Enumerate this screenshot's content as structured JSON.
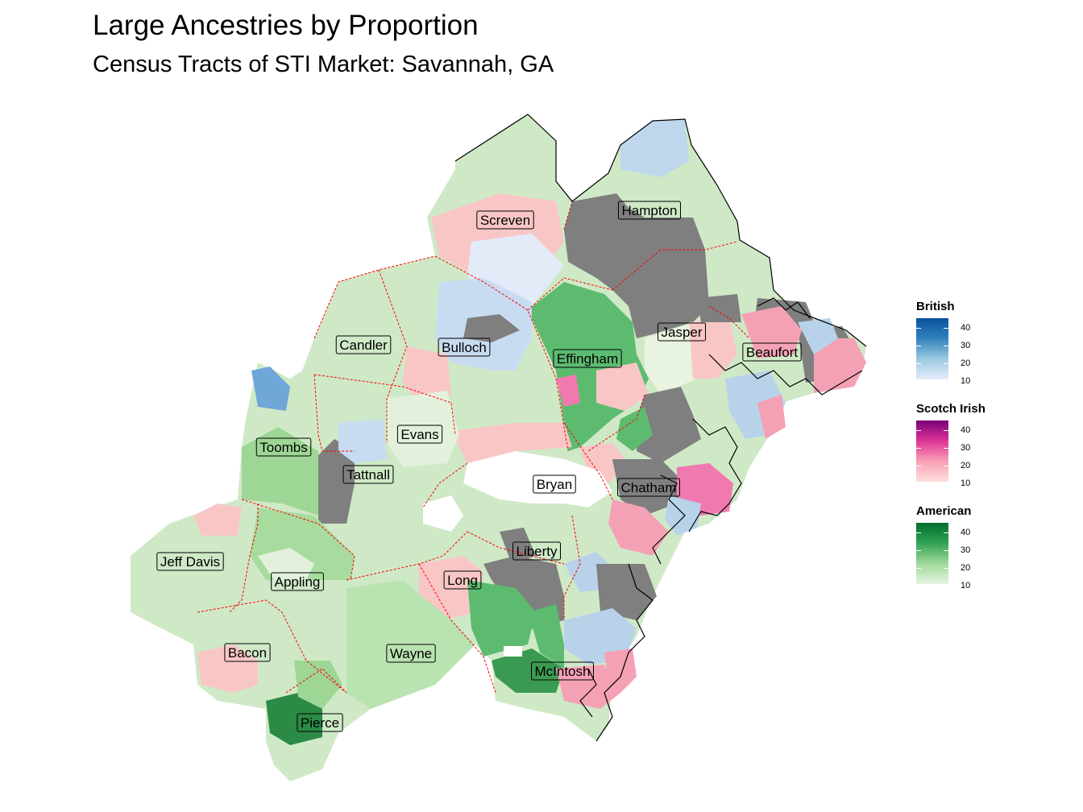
{
  "title": "Large Ancestries by Proportion",
  "subtitle": "Census Tracts of STI Market: Savannah, GA",
  "counties": [
    "Screven",
    "Hampton",
    "Candler",
    "Bulloch",
    "Jasper",
    "Beaufort",
    "Effingham",
    "Evans",
    "Toombs",
    "Tattnall",
    "Bryan",
    "Chatham",
    "Liberty",
    "Jeff Davis",
    "Appling",
    "Long",
    "Bacon",
    "Wayne",
    "McIntosh",
    "Pierce"
  ],
  "legends": [
    {
      "title": "British",
      "ticks": [
        "40",
        "30",
        "20",
        "10"
      ],
      "colors": [
        "#08519c",
        "#3182bd",
        "#9ecae1",
        "#e3eef9"
      ]
    },
    {
      "title": "Scotch Irish",
      "ticks": [
        "40",
        "30",
        "20",
        "10"
      ],
      "colors": [
        "#7a0177",
        "#dd3497",
        "#fa9fb5",
        "#fde0dd"
      ]
    },
    {
      "title": "American",
      "ticks": [
        "40",
        "30",
        "20",
        "10"
      ],
      "colors": [
        "#006d2c",
        "#31a354",
        "#a1d99b",
        "#e5f5e0"
      ]
    }
  ],
  "colors": {
    "missing": "#7f7f7f",
    "county_border": "#ff0000",
    "coast": "#000000"
  }
}
